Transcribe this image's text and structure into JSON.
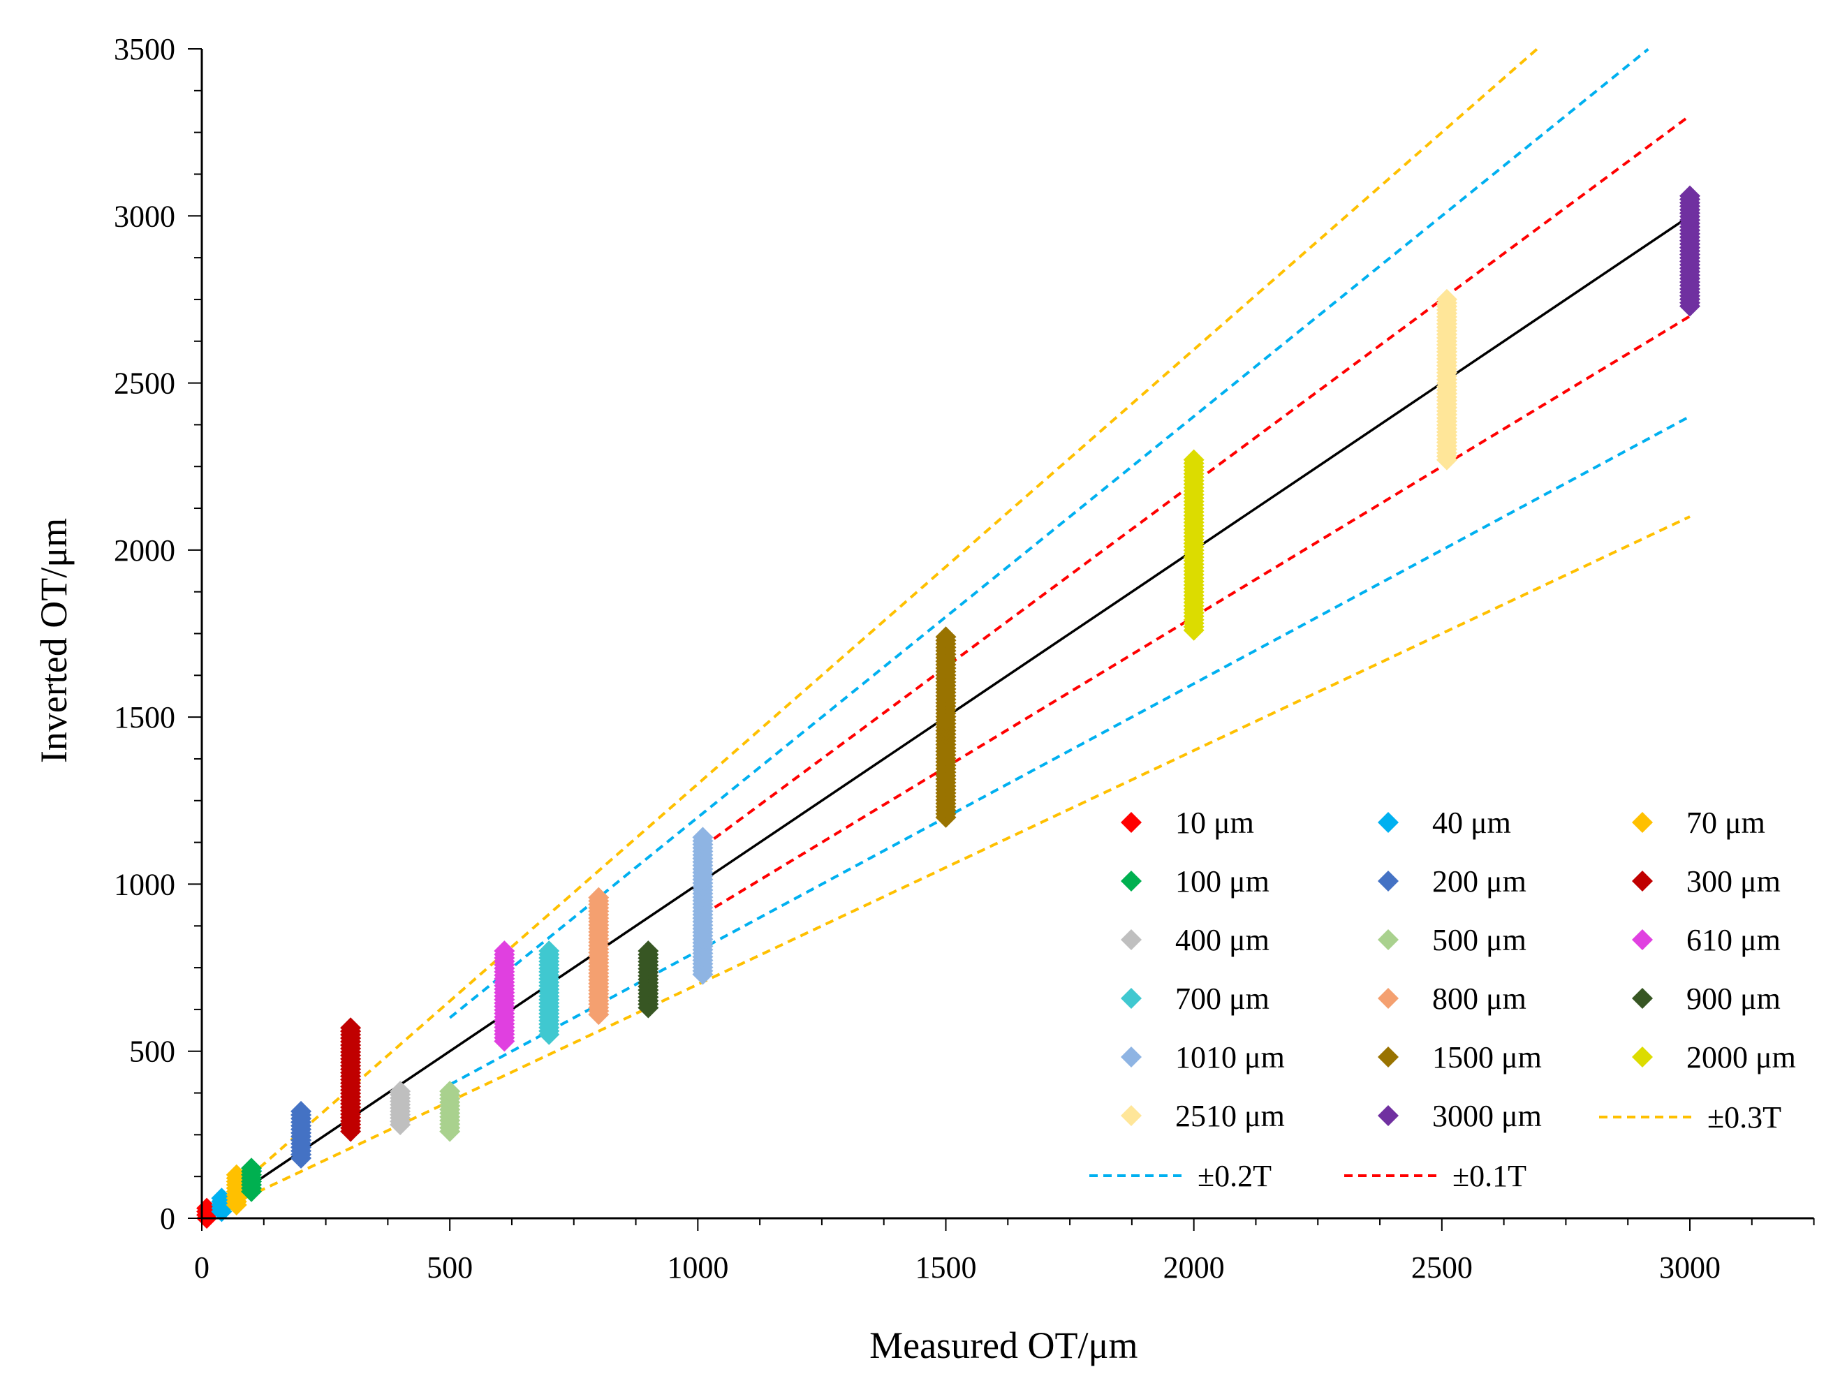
{
  "chart_data": {
    "type": "scatter",
    "title": "",
    "xlabel": "Measured OT/μm",
    "ylabel": "Inverted OT/μm",
    "xlim": [
      0,
      3250
    ],
    "ylim": [
      0,
      3500
    ],
    "xticks": [
      "0",
      "500",
      "1000",
      "1500",
      "2000",
      "2500",
      "3000"
    ],
    "xtick_values": [
      0,
      500,
      1000,
      1500,
      2000,
      2500,
      3000
    ],
    "yticks": [
      "0",
      "500",
      "1000",
      "1500",
      "2000",
      "2500",
      "3000",
      "3500"
    ],
    "ytick_values": [
      0,
      500,
      1000,
      1500,
      2000,
      2500,
      3000,
      3500
    ],
    "legend_position": "bottom-right",
    "series": [
      {
        "name": "10 μm",
        "x": 10,
        "y_min": 0,
        "y_max": 30,
        "color": "#ff0000"
      },
      {
        "name": "40 μm",
        "x": 40,
        "y_min": 20,
        "y_max": 60,
        "color": "#00b0f0"
      },
      {
        "name": "70 μm",
        "x": 70,
        "y_min": 40,
        "y_max": 130,
        "color": "#ffc000"
      },
      {
        "name": "100 μm",
        "x": 100,
        "y_min": 80,
        "y_max": 150,
        "color": "#00b050"
      },
      {
        "name": "200 μm",
        "x": 200,
        "y_min": 180,
        "y_max": 320,
        "color": "#4472c4"
      },
      {
        "name": "300 μm",
        "x": 300,
        "y_min": 260,
        "y_max": 570,
        "color": "#c00000"
      },
      {
        "name": "400 μm",
        "x": 400,
        "y_min": 280,
        "y_max": 380,
        "color": "#bfbfbf"
      },
      {
        "name": "500 μm",
        "x": 500,
        "y_min": 260,
        "y_max": 380,
        "color": "#a9d18e"
      },
      {
        "name": "610 μm",
        "x": 610,
        "y_min": 530,
        "y_max": 800,
        "color": "#e040e0"
      },
      {
        "name": "700 μm",
        "x": 700,
        "y_min": 550,
        "y_max": 800,
        "color": "#40c8d0"
      },
      {
        "name": "800 μm",
        "x": 800,
        "y_min": 610,
        "y_max": 960,
        "color": "#f4a070"
      },
      {
        "name": "900 μm",
        "x": 900,
        "y_min": 630,
        "y_max": 800,
        "color": "#375623"
      },
      {
        "name": "1010 μm",
        "x": 1010,
        "y_min": 730,
        "y_max": 1140,
        "color": "#8eb4e3"
      },
      {
        "name": "1500 μm",
        "x": 1500,
        "y_min": 1200,
        "y_max": 1740,
        "color": "#997300"
      },
      {
        "name": "2000 μm",
        "x": 2000,
        "y_min": 1760,
        "y_max": 2270,
        "color": "#dcdc00"
      },
      {
        "name": "2510 μm",
        "x": 2510,
        "y_min": 2270,
        "y_max": 2750,
        "color": "#ffe699"
      },
      {
        "name": "3000 μm",
        "x": 3000,
        "y_min": 2730,
        "y_max": 3060,
        "color": "#7030a0"
      }
    ],
    "reference_lines": [
      {
        "name": "",
        "slope": 1.0,
        "x_from": 10,
        "x_to": 3000,
        "color": "#000000",
        "dashed": false,
        "show_in_legend": false
      },
      {
        "name": "±0.3T",
        "slope": 1.3,
        "x_from": 10,
        "x_to": 2695,
        "color": "#ffc000",
        "dashed": true,
        "show_in_legend": true
      },
      {
        "name": "",
        "slope": 0.7,
        "x_from": 10,
        "x_to": 3000,
        "color": "#ffc000",
        "dashed": true,
        "show_in_legend": false
      },
      {
        "name": "±0.2T",
        "slope": 1.2,
        "x_from": 500,
        "x_to": 2916,
        "color": "#00b0f0",
        "dashed": true,
        "show_in_legend": true
      },
      {
        "name": "",
        "slope": 0.8,
        "x_from": 500,
        "x_to": 3000,
        "color": "#00b0f0",
        "dashed": true,
        "show_in_legend": false
      },
      {
        "name": "",
        "slope": 1.2,
        "x_from": 10,
        "x_to": 120,
        "color": "#00b0f0",
        "dashed": true,
        "show_in_legend": false
      },
      {
        "name": "±0.1T",
        "slope": 1.1,
        "x_from": 1010,
        "x_to": 3000,
        "color": "#ff0000",
        "dashed": true,
        "show_in_legend": true
      },
      {
        "name": "",
        "slope": 0.9,
        "x_from": 1010,
        "x_to": 3000,
        "color": "#ff0000",
        "dashed": true,
        "show_in_legend": false
      }
    ]
  }
}
